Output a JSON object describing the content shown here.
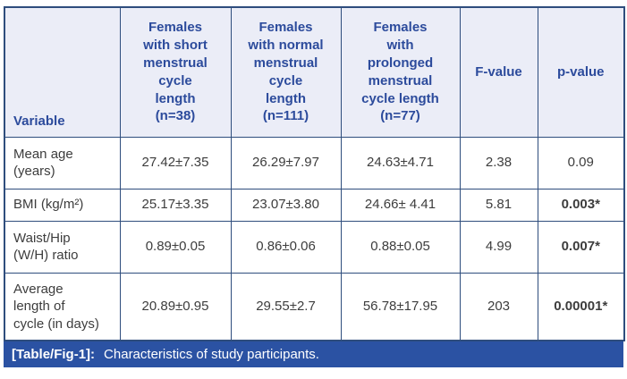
{
  "colors": {
    "border": "#2e4d7d",
    "header_bg": "#ebedf7",
    "header_text": "#2c4b9c",
    "body_text": "#3d3d3d",
    "caption_bg": "#2b52a3",
    "caption_text": "#ffffff"
  },
  "table": {
    "columns": [
      {
        "label": "Variable"
      },
      {
        "label": "Females\nwith short\nmenstrual\ncycle\nlength\n(n=38)"
      },
      {
        "label": "Females\nwith normal\nmenstrual\ncycle\nlength\n(n=111)"
      },
      {
        "label": "Females\nwith\nprolonged\nmenstrual\ncycle length\n(n=77)"
      },
      {
        "label": "F-value"
      },
      {
        "label": "p-value"
      }
    ],
    "rows": [
      {
        "variable": "Mean age\n(years)",
        "values": [
          "27.42±7.35",
          "26.29±7.97",
          "24.63±4.71",
          "2.38",
          "0.09"
        ],
        "p_bold": false
      },
      {
        "variable": "BMI (kg/m²)",
        "values": [
          "25.17±3.35",
          "23.07±3.80",
          "24.66± 4.41",
          "5.81",
          "0.003*"
        ],
        "p_bold": true
      },
      {
        "variable": "Waist/Hip\n(W/H) ratio",
        "values": [
          "0.89±0.05",
          "0.86±0.06",
          "0.88±0.05",
          "4.99",
          "0.007*"
        ],
        "p_bold": true
      },
      {
        "variable": "Average\nlength of\ncycle (in days)",
        "values": [
          "20.89±0.95",
          "29.55±2.7",
          "56.78±17.95",
          "203",
          "0.00001*"
        ],
        "p_bold": true
      }
    ]
  },
  "caption": {
    "label": "[Table/Fig-1]:",
    "text": "Characteristics of study participants."
  }
}
